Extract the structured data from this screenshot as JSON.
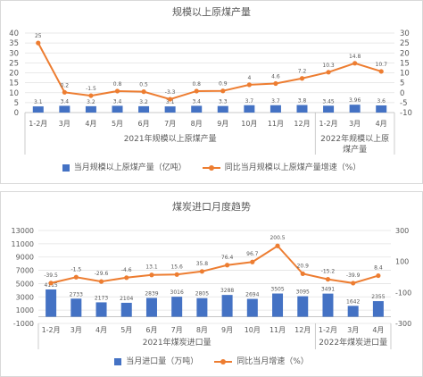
{
  "chart_data": [
    {
      "type": "bar",
      "title": "规模以上原煤产量",
      "category_groups": [
        {
          "label": "2021年规模以上原煤产量",
          "categories": [
            "1-2月",
            "3月",
            "4月",
            "5月",
            "6月",
            "7月",
            "8月",
            "9月",
            "10月",
            "11月",
            "12月"
          ]
        },
        {
          "label": "2022年规模以上原煤产量",
          "categories": [
            "1-2月",
            "3月",
            "4月"
          ]
        }
      ],
      "y_left": {
        "min": 0,
        "max": 40,
        "ticks": [
          40,
          35,
          30,
          25,
          20,
          15,
          10,
          5,
          0
        ]
      },
      "y_right": {
        "min": -10,
        "max": 30,
        "ticks": [
          30,
          25,
          20,
          15,
          10,
          5,
          0,
          -5,
          -10
        ]
      },
      "grid": true,
      "legend": "bottom",
      "series": [
        {
          "name": "当月规模以上原煤产量（亿吨）",
          "type": "bar",
          "axis": "left",
          "color": "#4472C4",
          "values": [
            3.1,
            3.4,
            3.2,
            3.4,
            3.2,
            3.1,
            3.4,
            3.3,
            3.7,
            3.7,
            3.8,
            3.45,
            3.96,
            3.6
          ]
        },
        {
          "name": "同比当月规模以上原煤产量增速（%）",
          "type": "line",
          "axis": "right",
          "color": "#ED7D31",
          "values": [
            25,
            0.2,
            -1.5,
            0.8,
            0.5,
            -3.3,
            0.8,
            0.9,
            4,
            4.6,
            7.2,
            10.3,
            14.8,
            10.7
          ]
        }
      ]
    },
    {
      "type": "bar",
      "title": "煤炭进口月度趋势",
      "category_groups": [
        {
          "label": "2021年煤炭进口量",
          "categories": [
            "1-2月",
            "3月",
            "4月",
            "5月",
            "6月",
            "7月",
            "8月",
            "9月",
            "10月",
            "11月",
            "12月"
          ]
        },
        {
          "label": "2022年煤炭进口量",
          "categories": [
            "1-2月",
            "3月",
            "4月"
          ]
        }
      ],
      "y_left": {
        "min": -1000,
        "max": 13000,
        "ticks": [
          13000,
          11000,
          9000,
          7000,
          5000,
          3000,
          1000,
          -1000
        ]
      },
      "y_right": {
        "min": -300,
        "max": 300,
        "ticks": [
          300,
          100,
          -100,
          -300
        ]
      },
      "grid": true,
      "legend": "bottom",
      "series": [
        {
          "name": "当月进口量（万吨）",
          "type": "bar",
          "axis": "left",
          "color": "#4472C4",
          "values": [
            4115,
            2733,
            2173,
            2104,
            2839,
            3016,
            2805,
            3288,
            2694,
            3505,
            3095,
            3491,
            1642,
            2355
          ]
        },
        {
          "name": "同比当月增速（%）",
          "type": "line",
          "axis": "right",
          "color": "#ED7D31",
          "values": [
            -39.5,
            -1.5,
            -29.6,
            -4.6,
            13.1,
            15.6,
            35.8,
            76.4,
            96.7,
            200.5,
            20.9,
            -15.2,
            -39.9,
            8.4
          ]
        }
      ]
    }
  ]
}
